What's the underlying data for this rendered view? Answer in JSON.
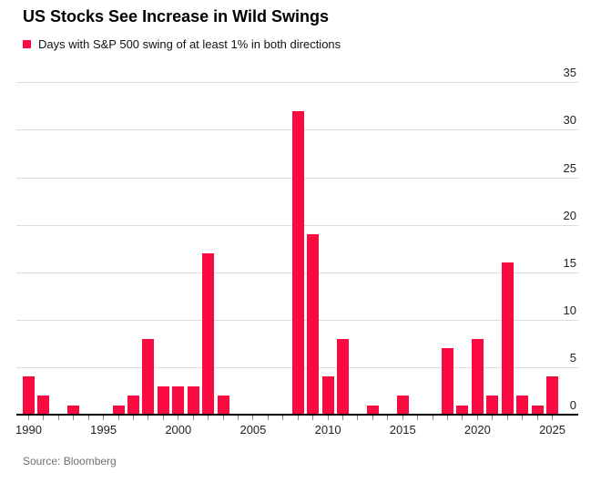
{
  "header": {
    "title": "US Stocks See Increase in Wild Swings",
    "legend_label": "Days with S&P 500 swing of at least 1% in both directions"
  },
  "footer": {
    "source": "Source: Bloomberg"
  },
  "colors": {
    "bar": "#fa0a41",
    "gridline": "#dcdcdc",
    "axis": "#000000",
    "tick": "#8a8a8a",
    "text": "#1f1f1f",
    "muted": "#707070"
  },
  "chart_data": {
    "type": "bar",
    "title": "US Stocks See Increase in Wild Swings",
    "legend": [
      "Days with S&P 500 swing of at least 1% in both directions"
    ],
    "legend_position": "top-left",
    "x": [
      1990,
      1991,
      1992,
      1993,
      1994,
      1995,
      1996,
      1997,
      1998,
      1999,
      2000,
      2001,
      2002,
      2003,
      2004,
      2005,
      2006,
      2007,
      2008,
      2009,
      2010,
      2011,
      2012,
      2013,
      2014,
      2015,
      2016,
      2017,
      2018,
      2019,
      2020,
      2021,
      2022,
      2023,
      2024,
      2025
    ],
    "values": [
      4,
      2,
      0,
      1,
      0,
      0,
      1,
      2,
      8,
      3,
      3,
      3,
      17,
      2,
      0,
      0,
      0,
      0,
      32,
      19,
      4,
      8,
      0,
      1,
      0,
      2,
      0,
      0,
      7,
      1,
      8,
      2,
      16,
      2,
      1,
      4
    ],
    "xlabel": "",
    "ylabel": "",
    "ylim": [
      0,
      35
    ],
    "yticks": [
      0,
      5,
      10,
      15,
      20,
      25,
      30,
      35
    ],
    "xtick_labeled_years": [
      1990,
      1995,
      2000,
      2005,
      2010,
      2015,
      2020,
      2025
    ],
    "grid": true,
    "y_axis_side": "right",
    "bar_color": "#fa0a41"
  }
}
